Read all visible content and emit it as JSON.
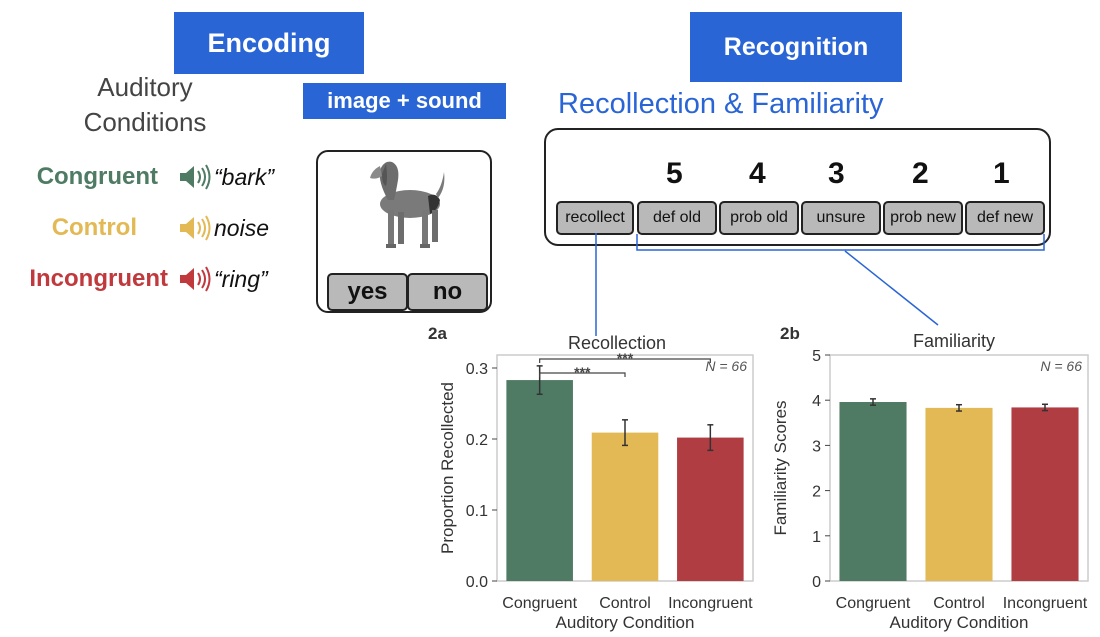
{
  "encoding": {
    "header": "Encoding",
    "subheader": "image + sound",
    "auditory_title_line1": "Auditory",
    "auditory_title_line2": "Conditions",
    "conditions": [
      {
        "name": "Congruent",
        "word": "“bark”",
        "color": "#4f7b64"
      },
      {
        "name": "Control",
        "word": "noise",
        "color": "#e3b955"
      },
      {
        "name": "Incongruent",
        "word": "“ring”",
        "color": "#c0393d"
      }
    ],
    "buttons": {
      "yes": "yes",
      "no": "no"
    },
    "image_icon": "dog-image"
  },
  "recognition": {
    "header": "Recognition",
    "subtitle": "Recollection & Familiarity",
    "scale_numbers": [
      "5",
      "4",
      "3",
      "2",
      "1"
    ],
    "options": [
      "recollect",
      "def old",
      "prob old",
      "unsure",
      "prob new",
      "def new"
    ]
  },
  "colors": {
    "accent_blue": "#2a65d6",
    "congruent": "#4f7b64",
    "control": "#e3b955",
    "incongruent": "#b03d42"
  },
  "chart_data": [
    {
      "panel": "2a",
      "type": "bar",
      "title": "Recollection",
      "xlabel": "Auditory Condition",
      "ylabel": "Proportion Recollected",
      "categories": [
        "Congruent",
        "Control",
        "Incongruent"
      ],
      "values": [
        0.283,
        0.209,
        0.202
      ],
      "errors": [
        0.02,
        0.018,
        0.018
      ],
      "ylim": [
        0,
        0.3
      ],
      "yticks": [
        "0.0",
        "0.1",
        "0.2",
        "0.3"
      ],
      "annotation": "N = 66",
      "significance": [
        {
          "from": "Congruent",
          "to": "Control",
          "label": "***"
        },
        {
          "from": "Congruent",
          "to": "Incongruent",
          "label": "***"
        }
      ]
    },
    {
      "panel": "2b",
      "type": "bar",
      "title": "Familiarity",
      "xlabel": "Auditory Condition",
      "ylabel": "Familiarity Scores",
      "categories": [
        "Congruent",
        "Control",
        "Incongruent"
      ],
      "values": [
        3.96,
        3.83,
        3.84
      ],
      "errors": [
        0.07,
        0.07,
        0.07
      ],
      "ylim": [
        0,
        5
      ],
      "yticks": [
        "0",
        "1",
        "2",
        "3",
        "4",
        "5"
      ],
      "annotation": "N = 66"
    }
  ]
}
